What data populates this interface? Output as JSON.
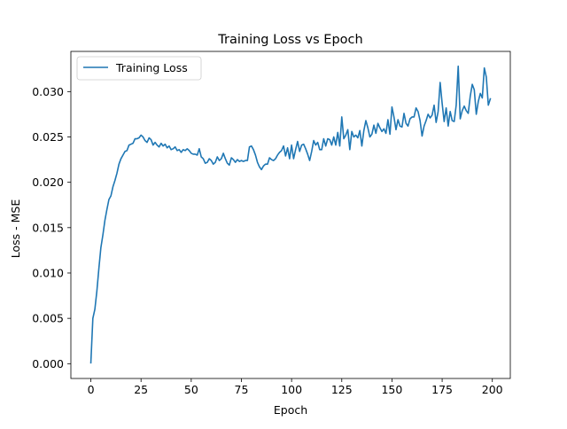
{
  "chart_data": {
    "type": "line",
    "title": "Training Loss vs Epoch",
    "xlabel": "Epoch",
    "ylabel": "Loss - MSE",
    "xlim": [
      -9.95,
      208.95
    ],
    "ylim": [
      -0.00163,
      0.03443
    ],
    "xticks": [
      0,
      25,
      50,
      75,
      100,
      125,
      150,
      175,
      200
    ],
    "xtick_labels": [
      "0",
      "25",
      "50",
      "75",
      "100",
      "125",
      "150",
      "175",
      "200"
    ],
    "yticks": [
      0.0,
      0.005,
      0.01,
      0.015,
      0.02,
      0.025,
      0.03
    ],
    "ytick_labels": [
      "0.000",
      "0.005",
      "0.010",
      "0.015",
      "0.020",
      "0.025",
      "0.030"
    ],
    "grid": false,
    "legend_position": "upper left",
    "series": [
      {
        "name": "Training Loss",
        "color": "#1f77b4",
        "x_start": 0,
        "x_step": 1,
        "values": [
          0.0001,
          0.005,
          0.006,
          0.008,
          0.0105,
          0.0128,
          0.0142,
          0.0158,
          0.017,
          0.0181,
          0.0185,
          0.0195,
          0.0202,
          0.021,
          0.022,
          0.0226,
          0.023,
          0.0234,
          0.0235,
          0.0241,
          0.0242,
          0.0243,
          0.0248,
          0.0248,
          0.0249,
          0.0252,
          0.025,
          0.0246,
          0.0244,
          0.0249,
          0.0247,
          0.0241,
          0.0244,
          0.0241,
          0.0239,
          0.0243,
          0.024,
          0.0242,
          0.0238,
          0.024,
          0.0236,
          0.0237,
          0.0239,
          0.0235,
          0.0236,
          0.0233,
          0.0236,
          0.0235,
          0.0237,
          0.0235,
          0.0232,
          0.0231,
          0.0231,
          0.023,
          0.0237,
          0.0228,
          0.0226,
          0.0221,
          0.0222,
          0.0226,
          0.0224,
          0.022,
          0.0222,
          0.0228,
          0.0224,
          0.0226,
          0.0232,
          0.0226,
          0.0221,
          0.0219,
          0.0227,
          0.0225,
          0.0222,
          0.0225,
          0.0223,
          0.0224,
          0.0223,
          0.0224,
          0.0224,
          0.0239,
          0.024,
          0.0236,
          0.023,
          0.0222,
          0.0217,
          0.0214,
          0.0218,
          0.022,
          0.022,
          0.0227,
          0.0225,
          0.0224,
          0.0226,
          0.023,
          0.0233,
          0.0235,
          0.024,
          0.0229,
          0.0238,
          0.0226,
          0.0241,
          0.0226,
          0.0236,
          0.0245,
          0.0234,
          0.0241,
          0.0242,
          0.0237,
          0.0231,
          0.0224,
          0.0234,
          0.0246,
          0.0241,
          0.0244,
          0.0236,
          0.0236,
          0.0248,
          0.024,
          0.0248,
          0.0247,
          0.0241,
          0.025,
          0.0241,
          0.0255,
          0.024,
          0.0272,
          0.0248,
          0.0252,
          0.0258,
          0.0236,
          0.0256,
          0.025,
          0.0252,
          0.0249,
          0.0257,
          0.024,
          0.0257,
          0.0268,
          0.026,
          0.025,
          0.0253,
          0.0263,
          0.0254,
          0.0265,
          0.026,
          0.0256,
          0.0259,
          0.0254,
          0.0269,
          0.0253,
          0.0283,
          0.0272,
          0.0258,
          0.0269,
          0.0262,
          0.0261,
          0.0276,
          0.0265,
          0.0262,
          0.027,
          0.0272,
          0.0272,
          0.0282,
          0.0278,
          0.0268,
          0.0251,
          0.0262,
          0.0268,
          0.0275,
          0.0271,
          0.0274,
          0.0285,
          0.0266,
          0.0278,
          0.031,
          0.0287,
          0.0267,
          0.0282,
          0.0262,
          0.0278,
          0.0268,
          0.0267,
          0.0285,
          0.0328,
          0.027,
          0.0279,
          0.0284,
          0.0279,
          0.0276,
          0.0295,
          0.0308,
          0.0302,
          0.0275,
          0.0289,
          0.0298,
          0.0293,
          0.0326,
          0.0316,
          0.0285,
          0.0292
        ]
      }
    ]
  }
}
